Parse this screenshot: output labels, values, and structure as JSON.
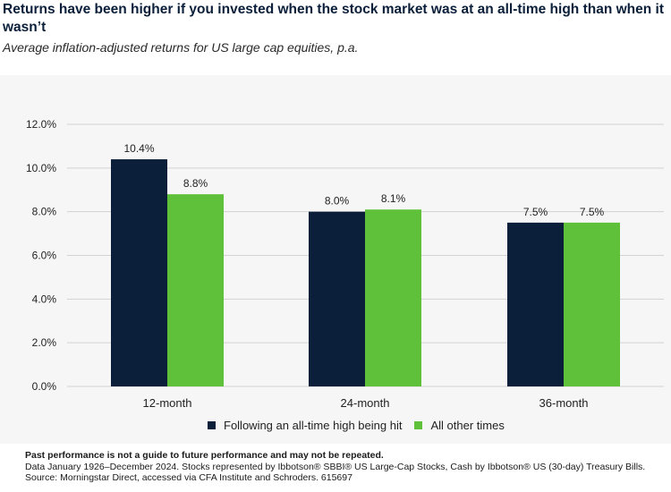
{
  "header": {
    "title": "Returns have been higher if you invested when the stock market was at an all-time high than when it wasn’t",
    "subtitle": "Average inflation-adjusted returns for US large cap equities, p.a."
  },
  "colors": {
    "series_1": "#0b1f3a",
    "series_2": "#5fc13a",
    "grid": "#d2d2d2",
    "panel": "#f6f6f6"
  },
  "chart_data": {
    "type": "bar",
    "title": "",
    "xlabel": "",
    "ylabel": "",
    "categories": [
      "12-month",
      "24-month",
      "36-month"
    ],
    "series": [
      {
        "name": "Following an all-time high being hit",
        "values": [
          10.4,
          8.0,
          7.5
        ],
        "labels": [
          "10.4%",
          "8.0%",
          "7.5%"
        ]
      },
      {
        "name": "All other times",
        "values": [
          8.8,
          8.1,
          7.5
        ],
        "labels": [
          "8.8%",
          "8.1%",
          "7.5%"
        ]
      }
    ],
    "ylim": [
      0,
      12
    ],
    "yticks": [
      0,
      2,
      4,
      6,
      8,
      10,
      12
    ],
    "ytick_labels": [
      "0.0%",
      "2.0%",
      "4.0%",
      "6.0%",
      "8.0%",
      "10.0%",
      "12.0%"
    ],
    "grid": true,
    "legend": "bottom"
  },
  "footer": {
    "line1": "Past performance is not a guide to future performance and may not be repeated.",
    "line2": "Data January 1926–December 2024. Stocks represented by Ibbotson® SBBI® US Large-Cap Stocks, Cash by Ibbotson® US (30-day) Treasury Bills.",
    "line3": "Source: Morningstar Direct, accessed via CFA Institute and Schroders. 615697"
  }
}
